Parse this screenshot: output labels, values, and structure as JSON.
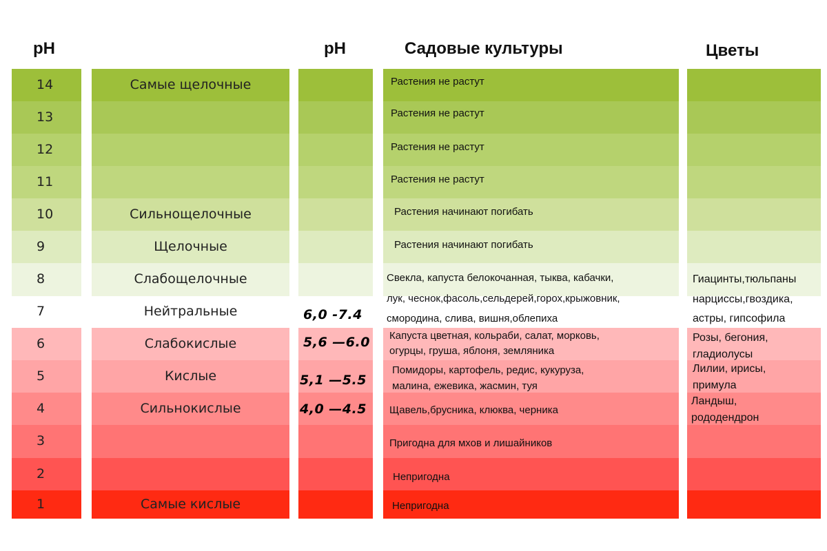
{
  "headers": {
    "ph_left": "pH",
    "ph_mid": "pH",
    "garden": "Садовые культуры",
    "flowers": "Цветы"
  },
  "colors": {
    "14": "#9dbf3a",
    "13": "#a9c856",
    "12": "#b5d16c",
    "11": "#bfd77e",
    "10": "#cfe09c",
    "9": "#deebbf",
    "8": "#edf4df",
    "7": "#ffffff",
    "6": "#ffb8b9",
    "5": "#ffa5a6",
    "4": "#ff8a8a",
    "3": "#ff7474",
    "2": "#ff5452",
    "1": "#ff2a12"
  },
  "rows": [
    {
      "ph": "14",
      "name": "Самые щелочные"
    },
    {
      "ph": "13",
      "name": ""
    },
    {
      "ph": "12",
      "name": ""
    },
    {
      "ph": "11",
      "name": ""
    },
    {
      "ph": "10",
      "name": "Сильнощелочные"
    },
    {
      "ph": "9",
      "name": "Щелочные"
    },
    {
      "ph": "8",
      "name": "Слабощелочные"
    },
    {
      "ph": "7",
      "name": "Нейтральные"
    },
    {
      "ph": "6",
      "name": "Слабокислые"
    },
    {
      "ph": "5",
      "name": "Кислые"
    },
    {
      "ph": "4",
      "name": "Сильнокислые"
    },
    {
      "ph": "3",
      "name": ""
    },
    {
      "ph": "2",
      "name": ""
    },
    {
      "ph": "1",
      "name": "Самые кислые"
    }
  ],
  "ranges": {
    "r7": "6,0 -7.4",
    "r6": "5,6 —6.0",
    "r5": "5,1 —5.5",
    "r4": "4,0 —4.5"
  },
  "garden": {
    "g14": "Растения не растут",
    "g13": "Растения не растут",
    "g12": "Растения не растут",
    "g11": "Растения не растут",
    "g10": "Растения начинают погибать",
    "g9": "Растения начинают погибать",
    "g8_l1": "Свекла, капуста белокочанная, тыква, кабачки,",
    "g8_l2": "лук, чеснок,фасоль,сельдерей,горох,крыжовник,",
    "g8_l3": "смородина, слива, вишня,облепиха",
    "g6_l1": "Капуста цветная, кольраби, салат, морковь,",
    "g6_l2": "огурцы, груша, яблоня, земляника",
    "g5_l1": "Помидоры, картофель, редис, кукуруза,",
    "g5_l2": "малина, ежевика, жасмин, туя",
    "g4": "Щавель,брусника, клюква, черника",
    "g3": "Пригодна для мхов и лишайников",
    "g2": "Непригодна",
    "g1": "Непригодна"
  },
  "flowers": {
    "f8_l1": "Гиацинты,тюльпаны",
    "f8_l2": "нарциссы,гвоздика,",
    "f8_l3": "астры, гипсофила",
    "f6_l1": "Розы, бегония,",
    "f6_l2": "гладиолусы",
    "f5_l1": "Лилии, ирисы,",
    "f5_l2": "примула",
    "f4_l1": "Ландыш,",
    "f4_l2": "рододендрон"
  }
}
